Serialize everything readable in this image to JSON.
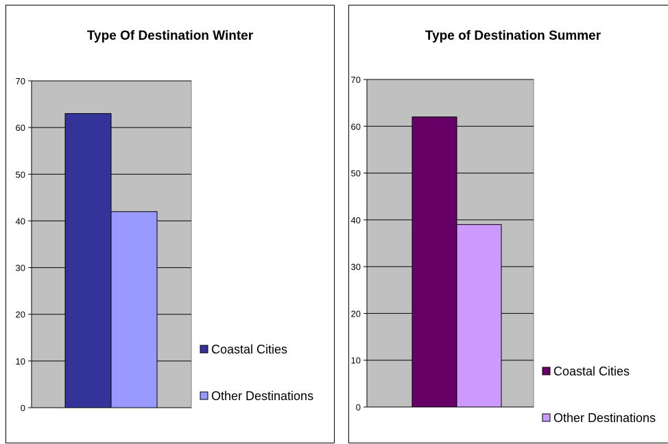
{
  "chart_data": [
    {
      "type": "bar",
      "title": "Type Of Destination Winter",
      "categories": [
        ""
      ],
      "series": [
        {
          "name": "Coastal Cities",
          "values": [
            63
          ],
          "color": "#333399"
        },
        {
          "name": "Other Destinations",
          "values": [
            42
          ],
          "color": "#9999ff"
        }
      ],
      "ylim": [
        0,
        70
      ],
      "yticks": [
        0,
        10,
        20,
        30,
        40,
        50,
        60,
        70
      ],
      "grid": true,
      "plot_background": "#c0c0c0",
      "legend_position": "right"
    },
    {
      "type": "bar",
      "title": "Type  of Destination  Summer",
      "categories": [
        ""
      ],
      "series": [
        {
          "name": "Coastal Cities",
          "values": [
            62
          ],
          "color": "#660066"
        },
        {
          "name": "Other Destinations",
          "values": [
            39
          ],
          "color": "#cc99ff"
        }
      ],
      "ylim": [
        0,
        70
      ],
      "yticks": [
        0,
        10,
        20,
        30,
        40,
        50,
        60,
        70
      ],
      "grid": true,
      "plot_background": "#c0c0c0",
      "legend_position": "right"
    }
  ]
}
